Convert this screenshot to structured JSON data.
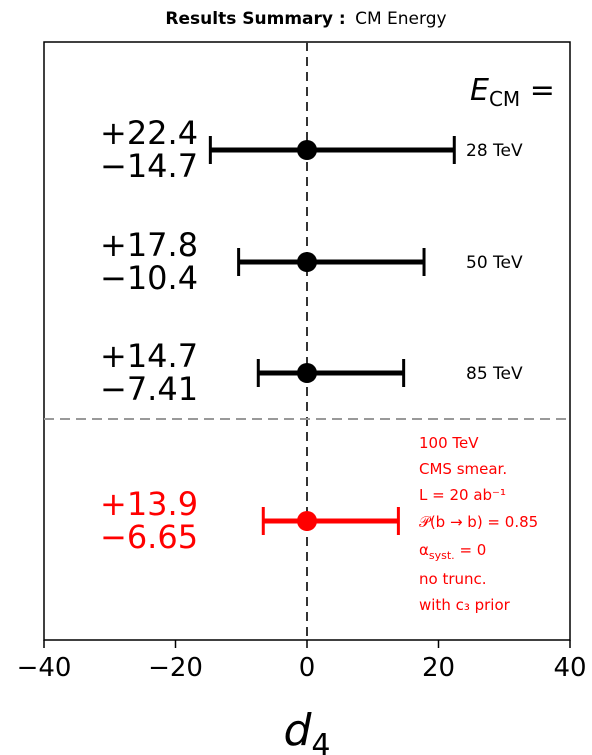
{
  "title": {
    "bold": "Results Summary :",
    "normal": "CM Energy"
  },
  "chart_data": {
    "type": "errorbar",
    "xlabel": "d",
    "xlabel_sub": "4",
    "xlim": [
      -40,
      40
    ],
    "xticks": [
      -40,
      -20,
      0,
      20,
      40
    ],
    "xtick_labels": [
      "−40",
      "−20",
      "0",
      "20",
      "40"
    ],
    "grid": false,
    "reference_line_x": 0,
    "header_label": {
      "main": "E",
      "sub": "CM",
      "suffix": " ="
    },
    "points": [
      {
        "label": "28 TeV",
        "central": 0,
        "plus": 22.4,
        "minus": 14.7,
        "plus_text": "+22.4",
        "minus_text": "−14.7",
        "color": "#000000"
      },
      {
        "label": "50 TeV",
        "central": 0,
        "plus": 17.8,
        "minus": 10.4,
        "plus_text": "+17.8",
        "minus_text": "−10.4",
        "color": "#000000"
      },
      {
        "label": "85 TeV",
        "central": 0,
        "plus": 14.7,
        "minus": 7.41,
        "plus_text": "+14.7",
        "minus_text": "−7.41",
        "color": "#000000"
      },
      {
        "label": "",
        "central": 0,
        "plus": 13.9,
        "minus": 6.65,
        "plus_text": "+13.9",
        "minus_text": "−6.65",
        "color": "#ff0000"
      }
    ],
    "annotation": {
      "color": "#ff0000",
      "lines": [
        {
          "id": "energy",
          "text": "100 TeV"
        },
        {
          "id": "smear",
          "text": "CMS smear."
        },
        {
          "id": "lumi",
          "text": "L = 20 ab⁻¹"
        },
        {
          "id": "btag",
          "text": "𝒫(b → b) = 0.85"
        },
        {
          "id": "syst",
          "main": "α",
          "sub": "syst.",
          "suffix": " = 0"
        },
        {
          "id": "trunc",
          "text": "no trunc."
        },
        {
          "id": "prior",
          "text": "with c₃ prior"
        }
      ]
    }
  }
}
